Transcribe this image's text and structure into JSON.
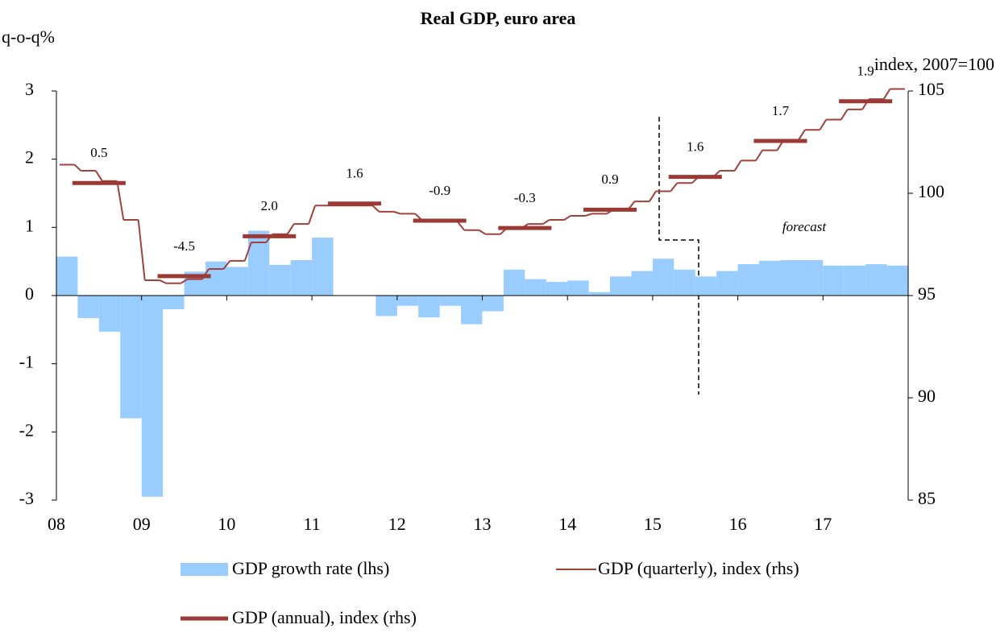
{
  "chart_data": {
    "type": "bar",
    "title": "Real GDP, euro area",
    "y_label": "q-o-q%",
    "y2_label": "index, 2007=100",
    "categories": [
      "08",
      null,
      null,
      null,
      "09",
      null,
      null,
      null,
      "10",
      null,
      null,
      null,
      "11",
      null,
      null,
      null,
      "12",
      null,
      null,
      null,
      "13",
      null,
      null,
      null,
      "14",
      null,
      null,
      null,
      "15",
      null,
      null,
      null,
      "16",
      null,
      null,
      null,
      "17",
      null,
      null,
      null
    ],
    "ylim": [
      -3,
      3
    ],
    "yticks": [
      -3,
      -2,
      -1,
      0,
      1,
      2,
      3
    ],
    "y2lim": [
      85,
      105
    ],
    "y2ticks": [
      85,
      90,
      95,
      100,
      105
    ],
    "series": [
      {
        "name": "GDP growth rate (lhs)",
        "type": "bar",
        "color": "#99ccff",
        "values": [
          0.57,
          -0.33,
          -0.53,
          -1.8,
          -2.95,
          -0.2,
          0.35,
          0.5,
          0.42,
          0.95,
          0.45,
          0.52,
          0.85,
          0.0,
          0.0,
          -0.3,
          -0.15,
          -0.32,
          -0.15,
          -0.42,
          -0.23,
          0.38,
          0.24,
          0.2,
          0.22,
          0.05,
          0.28,
          0.36,
          0.54,
          0.38,
          0.28,
          0.36,
          0.46,
          0.51,
          0.52,
          0.52,
          0.44,
          0.44,
          0.46,
          0.44
        ]
      },
      {
        "name": "GDP (quarterly), index (rhs)",
        "type": "step",
        "axis": "y2",
        "color": "#a0413b",
        "values": [
          101.4,
          101.1,
          100.6,
          98.7,
          95.75,
          95.6,
          95.8,
          96.3,
          96.7,
          97.6,
          98.0,
          98.5,
          99.4,
          99.4,
          99.4,
          99.1,
          99.0,
          98.7,
          98.6,
          98.2,
          98.0,
          98.3,
          98.5,
          98.7,
          98.9,
          99.0,
          99.2,
          99.6,
          100.1,
          100.5,
          100.8,
          101.1,
          101.6,
          102.1,
          102.6,
          103.1,
          103.6,
          104.1,
          104.6,
          105.1
        ]
      }
    ],
    "annual_series": {
      "name": "GDP (annual), index (rhs)",
      "axis": "y2",
      "color": "#9b3a35",
      "values": [
        100.5,
        95.95,
        97.9,
        99.5,
        98.66,
        98.3,
        99.2,
        100.8,
        102.56,
        104.5
      ],
      "growth_labels": [
        "0.5",
        "-4.5",
        "2.0",
        "1.6",
        "-0.9",
        "-0.3",
        "0.9",
        "1.6",
        "1.7",
        "1.9"
      ],
      "growth_label_colors": [
        "#a84a44",
        "#a84a44",
        "#a84a44",
        "#a84a44",
        "#a84a44",
        "#a84a44",
        "#a84a44",
        "#2e4b7a",
        "#2e4b7a",
        "#2e4b7a"
      ]
    },
    "forecast_label": "forecast"
  }
}
